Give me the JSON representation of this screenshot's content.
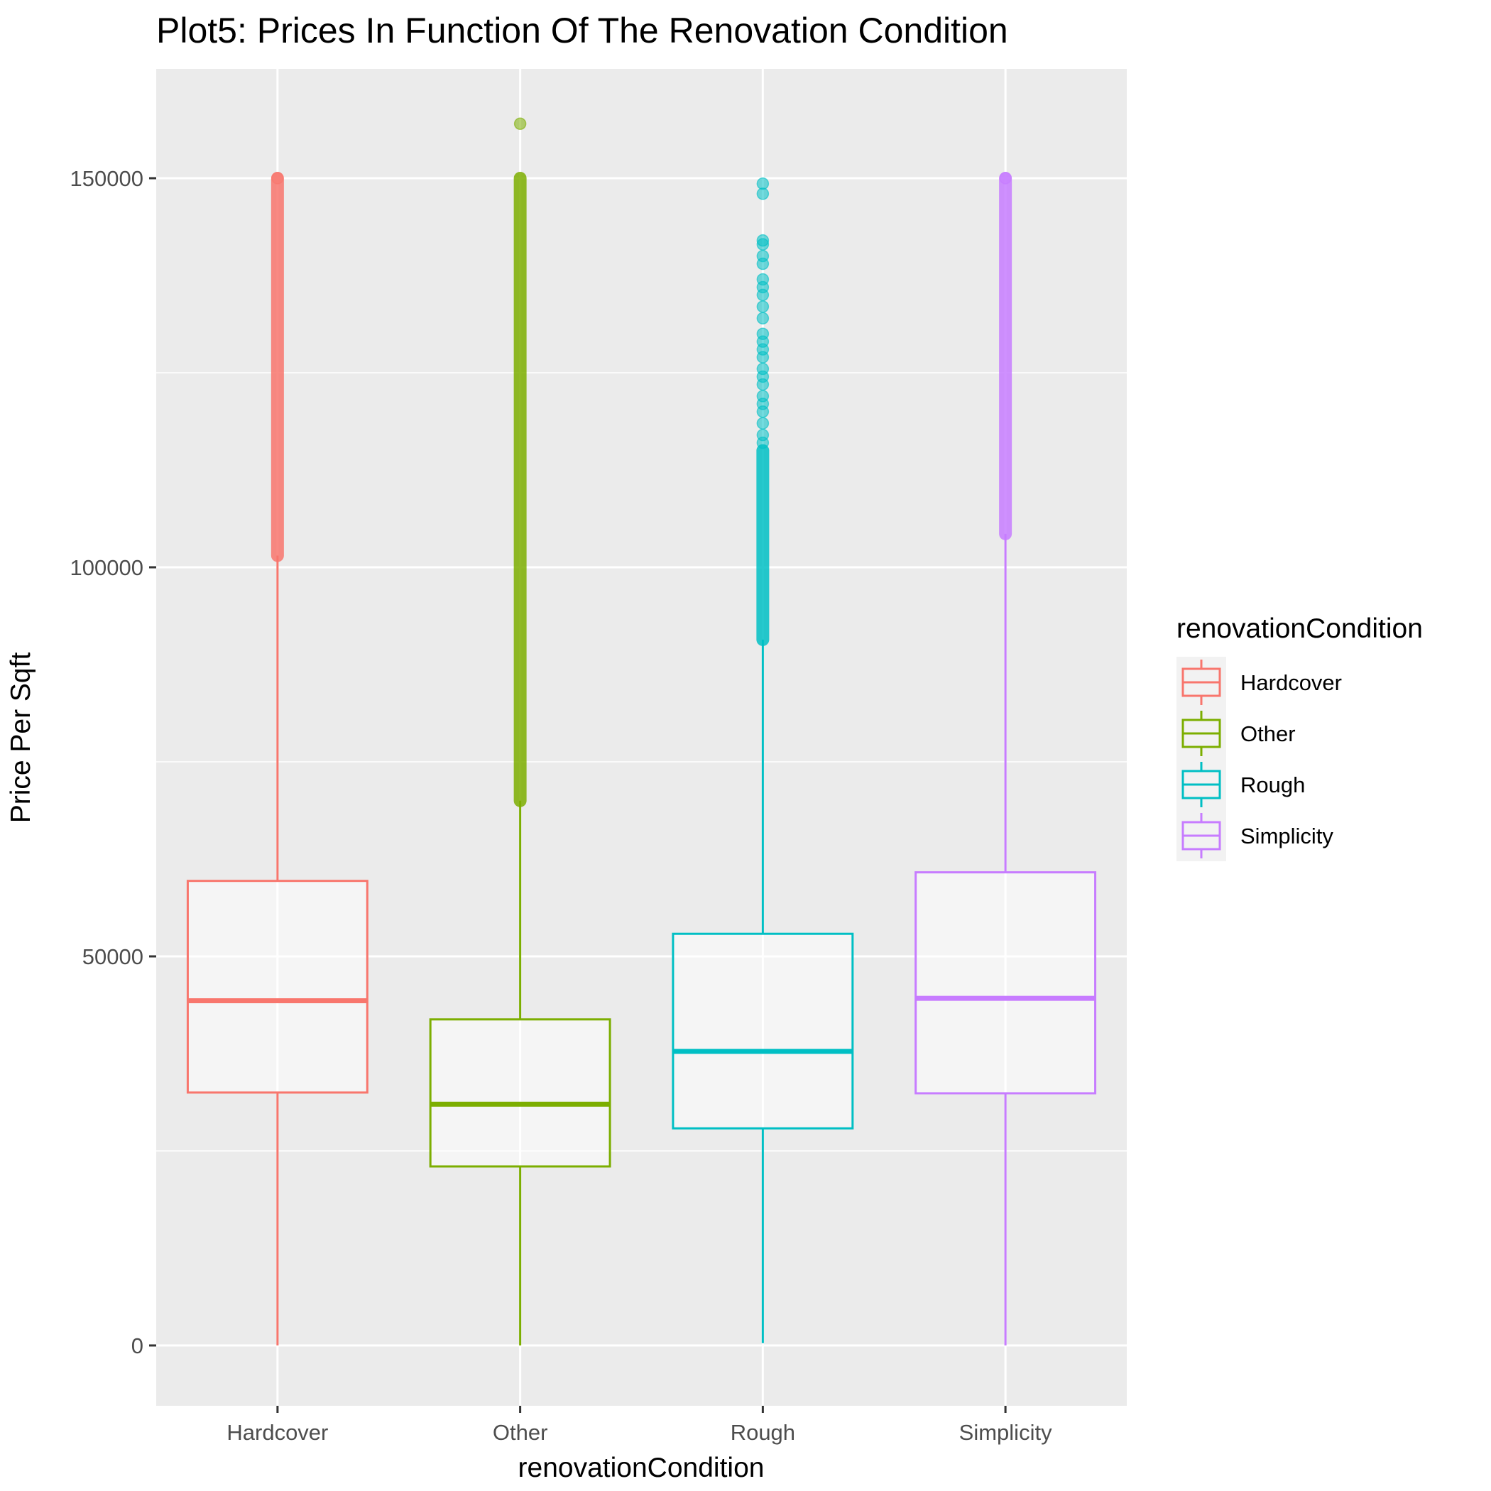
{
  "chart_data": {
    "type": "box",
    "title": "Plot5: Prices In Function Of The Renovation Condition",
    "xlabel": "renovationCondition",
    "ylabel": "Price Per Sqft",
    "ylim": [
      -7000,
      164000
    ],
    "y_ticks": [
      0,
      50000,
      100000,
      150000
    ],
    "y_tick_labels": [
      "0",
      "50000",
      "100000",
      "150000"
    ],
    "categories": [
      "Hardcover",
      "Other",
      "Rough",
      "Simplicity"
    ],
    "grid": true,
    "legend_position": "right",
    "legend_title": "renovationCondition",
    "series": [
      {
        "name": "Hardcover",
        "color": "#F8766D",
        "min": 0,
        "q1": 32500,
        "median": 44300,
        "q3": 59700,
        "whisker_high": 101500,
        "outliers_range": [
          101500,
          150000
        ],
        "outliers": [
          150000
        ]
      },
      {
        "name": "Other",
        "color": "#7CAE00",
        "min": 0,
        "q1": 23000,
        "median": 31000,
        "q3": 41900,
        "whisker_high": 70000,
        "outliers_range": [
          70000,
          150000
        ],
        "outliers": [
          157000
        ]
      },
      {
        "name": "Rough",
        "color": "#00BFC4",
        "min": 300,
        "q1": 27900,
        "median": 37800,
        "q3": 52900,
        "whisker_high": 90700,
        "outliers_range": [
          90700,
          115000
        ],
        "outliers": [
          116000,
          117000,
          118500,
          120000,
          121000,
          122000,
          123500,
          124500,
          125500,
          127000,
          128000,
          129000,
          130000,
          132000,
          133500,
          135000,
          136000,
          137000,
          139000,
          140000,
          141500,
          142000,
          148000,
          149300
        ]
      },
      {
        "name": "Simplicity",
        "color": "#C77CFF",
        "min": 0,
        "q1": 32400,
        "median": 44600,
        "q3": 60800,
        "whisker_high": 104300,
        "outliers_range": [
          104300,
          150000
        ],
        "outliers": [
          150000
        ]
      }
    ]
  }
}
